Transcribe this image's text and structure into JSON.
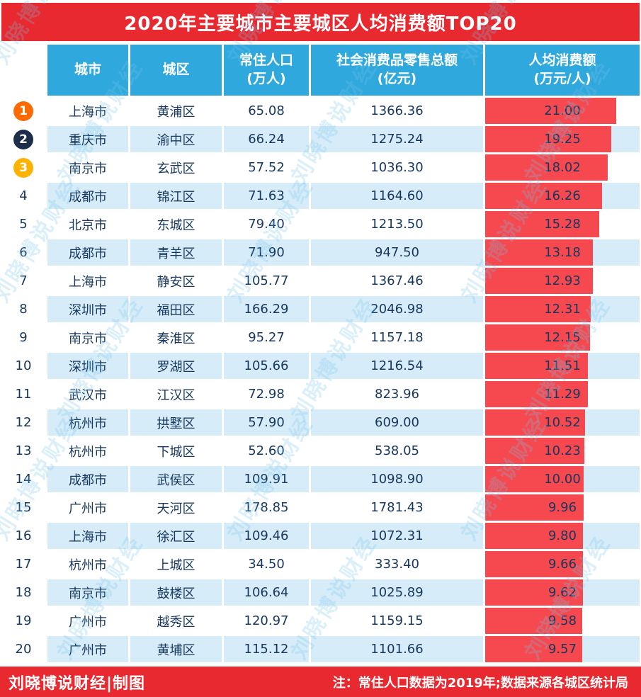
{
  "title": "2020年主要城市主要城区人均消费额TOP20",
  "watermark": "刘晓博说财经",
  "footer": {
    "credit": "刘晓博说财经|制图",
    "note": "注：常住人口数据为2019年;数据来源各城区统计局"
  },
  "colors": {
    "accent_red": "#e8292f",
    "header_blue": "#2fa8dd",
    "row_tint": "#d6ecf9",
    "bar_red": "#f5494f",
    "text_navy": "#17375e",
    "badge_rank1": "#ff6a00",
    "badge_rank2": "#1c2e4a",
    "badge_rank3": "#ffb300",
    "watermark_blue": "#78c3eb"
  },
  "chart_data": {
    "type": "table",
    "title": "2020年主要城市主要城区人均消费额TOP20",
    "columns": [
      "城市",
      "城区",
      "常住人口\n(万人)",
      "社会消费品零售总额\n(亿元)",
      "人均消费额\n(万元/人)"
    ],
    "bar_column": "人均消费额(万元/人)",
    "bar_range": [
      9.57,
      21.0
    ],
    "bar_width_pct_range": [
      63,
      85
    ],
    "rows": [
      {
        "rank": 1,
        "city": "上海市",
        "district": "黄浦区",
        "population": "65.08",
        "retail": "1366.36",
        "per_capita": "21.00"
      },
      {
        "rank": 2,
        "city": "重庆市",
        "district": "渝中区",
        "population": "66.24",
        "retail": "1275.24",
        "per_capita": "19.25"
      },
      {
        "rank": 3,
        "city": "南京市",
        "district": "玄武区",
        "population": "57.52",
        "retail": "1036.30",
        "per_capita": "18.02"
      },
      {
        "rank": 4,
        "city": "成都市",
        "district": "锦江区",
        "population": "71.63",
        "retail": "1164.60",
        "per_capita": "16.26"
      },
      {
        "rank": 5,
        "city": "北京市",
        "district": "东城区",
        "population": "79.40",
        "retail": "1213.50",
        "per_capita": "15.28"
      },
      {
        "rank": 6,
        "city": "成都市",
        "district": "青羊区",
        "population": "71.90",
        "retail": "947.50",
        "per_capita": "13.18"
      },
      {
        "rank": 7,
        "city": "上海市",
        "district": "静安区",
        "population": "105.77",
        "retail": "1367.46",
        "per_capita": "12.93"
      },
      {
        "rank": 8,
        "city": "深圳市",
        "district": "福田区",
        "population": "166.29",
        "retail": "2046.98",
        "per_capita": "12.31"
      },
      {
        "rank": 9,
        "city": "南京市",
        "district": "秦淮区",
        "population": "95.27",
        "retail": "1157.18",
        "per_capita": "12.15"
      },
      {
        "rank": 10,
        "city": "深圳市",
        "district": "罗湖区",
        "population": "105.66",
        "retail": "1216.54",
        "per_capita": "11.51"
      },
      {
        "rank": 11,
        "city": "武汉市",
        "district": "江汉区",
        "population": "72.98",
        "retail": "823.96",
        "per_capita": "11.29"
      },
      {
        "rank": 12,
        "city": "杭州市",
        "district": "拱墅区",
        "population": "57.90",
        "retail": "609.00",
        "per_capita": "10.52"
      },
      {
        "rank": 13,
        "city": "杭州市",
        "district": "下城区",
        "population": "52.60",
        "retail": "538.05",
        "per_capita": "10.23"
      },
      {
        "rank": 14,
        "city": "成都市",
        "district": "武侯区",
        "population": "109.91",
        "retail": "1098.90",
        "per_capita": "10.00"
      },
      {
        "rank": 15,
        "city": "广州市",
        "district": "天河区",
        "population": "178.85",
        "retail": "1781.43",
        "per_capita": "9.96"
      },
      {
        "rank": 16,
        "city": "上海市",
        "district": "徐汇区",
        "population": "109.46",
        "retail": "1072.31",
        "per_capita": "9.80"
      },
      {
        "rank": 17,
        "city": "杭州市",
        "district": "上城区",
        "population": "34.50",
        "retail": "333.40",
        "per_capita": "9.66"
      },
      {
        "rank": 18,
        "city": "南京市",
        "district": "鼓楼区",
        "population": "106.64",
        "retail": "1025.89",
        "per_capita": "9.62"
      },
      {
        "rank": 19,
        "city": "广州市",
        "district": "越秀区",
        "population": "120.97",
        "retail": "1159.15",
        "per_capita": "9.58"
      },
      {
        "rank": 20,
        "city": "广州市",
        "district": "黄埔区",
        "population": "115.12",
        "retail": "1101.66",
        "per_capita": "9.57"
      }
    ]
  }
}
